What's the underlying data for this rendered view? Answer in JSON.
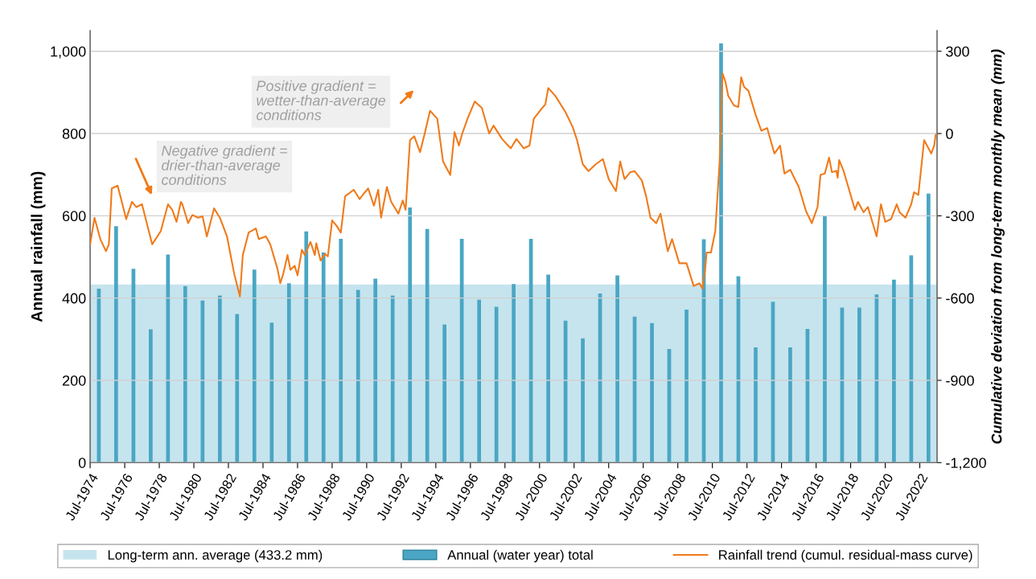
{
  "chart_data": {
    "type": "bar",
    "ylabel": "Annual rainfall (mm)",
    "y2label": "Cumulative deviation from long-term monthly mean (mm)",
    "xlim": [
      "1974-07",
      "2023-07"
    ],
    "xticks": [
      {
        "value": "1974-07",
        "label": "Jul-1974"
      },
      {
        "value": "1976-07",
        "label": "Jul-1976"
      },
      {
        "value": "1978-07",
        "label": "Jul-1978"
      },
      {
        "value": "1980-07",
        "label": "Jul-1980"
      },
      {
        "value": "1982-07",
        "label": "Jul-1982"
      },
      {
        "value": "1984-07",
        "label": "Jul-1984"
      },
      {
        "value": "1986-07",
        "label": "Jul-1986"
      },
      {
        "value": "1988-07",
        "label": "Jul-1988"
      },
      {
        "value": "1990-07",
        "label": "Jul-1990"
      },
      {
        "value": "1992-07",
        "label": "Jul-1992"
      },
      {
        "value": "1994-07",
        "label": "Jul-1994"
      },
      {
        "value": "1996-07",
        "label": "Jul-1996"
      },
      {
        "value": "1998-07",
        "label": "Jul-1998"
      },
      {
        "value": "2000-07",
        "label": "Jul-2000"
      },
      {
        "value": "2002-07",
        "label": "Jul-2002"
      },
      {
        "value": "2004-07",
        "label": "Jul-2004"
      },
      {
        "value": "2006-07",
        "label": "Jul-2006"
      },
      {
        "value": "2008-07",
        "label": "Jul-2008"
      },
      {
        "value": "2010-07",
        "label": "Jul-2010"
      },
      {
        "value": "2012-07",
        "label": "Jul-2012"
      },
      {
        "value": "2014-07",
        "label": "Jul-2014"
      },
      {
        "value": "2016-07",
        "label": "Jul-2016"
      },
      {
        "value": "2018-07",
        "label": "Jul-2018"
      },
      {
        "value": "2020-07",
        "label": "Jul-2020"
      },
      {
        "value": "2022-07",
        "label": "Jul-2022"
      }
    ],
    "ylim": [
      0,
      1050
    ],
    "yticks": [
      0,
      200,
      400,
      600,
      800,
      {
        "value": 1000,
        "label": "1,000"
      }
    ],
    "y2lim": [
      -1200,
      375
    ],
    "y2ticks": [
      {
        "value": -1200,
        "label": "-1,200"
      },
      -900,
      -600,
      -300,
      0,
      300
    ],
    "grid": "y",
    "legend": "bottom",
    "bands": [
      {
        "axis": "y",
        "from": 0,
        "to": 433.2,
        "label": "Long-term ann. average (433.2 mm)",
        "color": "#c6e4ee"
      }
    ],
    "series": [
      {
        "name": "Annual (water year) total",
        "color": "#4aa6c4",
        "x": [
          "1975-01",
          "1976-01",
          "1977-01",
          "1978-01",
          "1979-01",
          "1980-01",
          "1981-01",
          "1982-01",
          "1983-01",
          "1984-01",
          "1985-01",
          "1986-01",
          "1987-01",
          "1988-01",
          "1989-01",
          "1990-01",
          "1991-01",
          "1992-01",
          "1993-01",
          "1994-01",
          "1995-01",
          "1996-01",
          "1997-01",
          "1998-01",
          "1999-01",
          "2000-01",
          "2001-01",
          "2002-01",
          "2003-01",
          "2004-01",
          "2005-01",
          "2006-01",
          "2007-01",
          "2008-01",
          "2009-01",
          "2010-01",
          "2011-01",
          "2012-01",
          "2013-01",
          "2014-01",
          "2015-01",
          "2016-01",
          "2017-01",
          "2018-01",
          "2019-01",
          "2020-01",
          "2021-01",
          "2022-01",
          "2023-01"
        ],
        "values": [
          423,
          575,
          471,
          324,
          506,
          429,
          394,
          406,
          361,
          469,
          340,
          436,
          562,
          511,
          544,
          420,
          447,
          406,
          620,
          568,
          336,
          544,
          396,
          379,
          434,
          544,
          457,
          345,
          302,
          411,
          455,
          355,
          339,
          276,
          372,
          543,
          1019,
          453,
          280,
          391,
          280,
          325,
          599,
          377,
          377,
          409,
          445,
          504,
          654
        ]
      },
      {
        "name": "Rainfall trend (cumul. residual-mass curve)",
        "type": "line",
        "axis": "y2",
        "color": "#f07a1a",
        "x": [
          "1974-07",
          "1974-10",
          "1975-02",
          "1975-06",
          "1975-08",
          "1975-10",
          "1976-02",
          "1976-04",
          "1976-08",
          "1976-12",
          "1977-03",
          "1977-07",
          "1978-02",
          "1978-08",
          "1979-01",
          "1979-04",
          "1979-07",
          "1979-10",
          "1979-11",
          "1980-03",
          "1980-06",
          "1980-10",
          "1981-01",
          "1981-04",
          "1981-09",
          "1982-01",
          "1982-06",
          "1982-11",
          "1983-03",
          "1983-05",
          "1983-09",
          "1984-02",
          "1984-04",
          "1984-09",
          "1984-12",
          "1985-05",
          "1985-07",
          "1985-09",
          "1985-12",
          "1986-02",
          "1986-05",
          "1986-07",
          "1986-10",
          "1986-12",
          "1987-04",
          "1987-07",
          "1987-08",
          "1987-11",
          "1988-02",
          "1988-04",
          "1988-07",
          "1988-10",
          "1989-01",
          "1989-04",
          "1989-10",
          "1990-02",
          "1990-05",
          "1990-08",
          "1990-12",
          "1991-03",
          "1991-05",
          "1991-09",
          "1991-12",
          "1992-05",
          "1992-08",
          "1992-10",
          "1993-01",
          "1993-04",
          "1993-08",
          "1993-11",
          "1994-03",
          "1994-08",
          "1994-12",
          "1995-05",
          "1995-08",
          "1995-11",
          "1996-01",
          "1996-05",
          "1996-10",
          "1997-03",
          "1997-08",
          "1997-11",
          "1998-05",
          "1998-11",
          "1999-03",
          "1999-08",
          "1999-12",
          "2000-03",
          "2000-08",
          "2000-11",
          "2001-01",
          "2001-06",
          "2002-01",
          "2002-06",
          "2002-09",
          "2003-01",
          "2003-05",
          "2003-10",
          "2004-03",
          "2004-07",
          "2004-12",
          "2005-03",
          "2005-06",
          "2005-10",
          "2006-01",
          "2006-06",
          "2006-09",
          "2006-12",
          "2007-04",
          "2007-07",
          "2007-12",
          "2008-03",
          "2008-08",
          "2009-01",
          "2009-06",
          "2009-10",
          "2009-12",
          "2010-02",
          "2010-03",
          "2010-06",
          "2010-09",
          "2010-12",
          "2011-02",
          "2011-04",
          "2011-06",
          "2011-10",
          "2012-01",
          "2012-03",
          "2012-05",
          "2012-08",
          "2013-01",
          "2013-05",
          "2013-09",
          "2014-02",
          "2014-06",
          "2014-09",
          "2015-01",
          "2015-07",
          "2015-12",
          "2016-04",
          "2016-08",
          "2016-10",
          "2017-01",
          "2017-04",
          "2017-06",
          "2017-09",
          "2017-10",
          "2017-11",
          "2018-02",
          "2018-10",
          "2018-12",
          "2019-04",
          "2019-07",
          "2020-01",
          "2020-04",
          "2020-07",
          "2020-11",
          "2021-03",
          "2021-05",
          "2021-09",
          "2022-01",
          "2022-03",
          "2022-06",
          "2022-10",
          "2023-03",
          "2023-05",
          "2023-06"
        ],
        "values": [
          -404,
          -307,
          -385,
          -429,
          -404,
          -200,
          -190,
          -229,
          -312,
          -249,
          -268,
          -258,
          -404,
          -356,
          -258,
          -278,
          -322,
          -249,
          -258,
          -327,
          -297,
          -307,
          -302,
          -375,
          -273,
          -307,
          -375,
          -512,
          -594,
          -443,
          -361,
          -346,
          -385,
          -375,
          -404,
          -492,
          -546,
          -512,
          -443,
          -497,
          -482,
          -517,
          -424,
          -443,
          -395,
          -443,
          -400,
          -463,
          -439,
          -448,
          -317,
          -336,
          -361,
          -229,
          -205,
          -239,
          -219,
          -200,
          -263,
          -205,
          -307,
          -195,
          -249,
          -292,
          -244,
          -278,
          -24,
          -10,
          -68,
          -5,
          83,
          54,
          -102,
          -151,
          5,
          -44,
          -5,
          54,
          117,
          93,
          0,
          29,
          -20,
          -54,
          -20,
          -54,
          -44,
          54,
          88,
          107,
          166,
          137,
          78,
          24,
          -24,
          -112,
          -137,
          -112,
          -93,
          -166,
          -210,
          -102,
          -166,
          -141,
          -137,
          -171,
          -229,
          -307,
          -327,
          -292,
          -429,
          -385,
          -473,
          -473,
          -556,
          -546,
          -565,
          -492,
          -434,
          -434,
          -356,
          -102,
          219,
          190,
          137,
          102,
          97,
          205,
          170,
          156,
          68,
          10,
          20,
          -73,
          -44,
          -146,
          -132,
          -195,
          -283,
          -327,
          -268,
          -151,
          -146,
          -88,
          -141,
          -136,
          -161,
          -97,
          -136,
          -278,
          -249,
          -287,
          -268,
          -375,
          -258,
          -322,
          -312,
          -258,
          -287,
          -307,
          -258,
          -214,
          -224,
          -24,
          -73,
          -44,
          -5
        ]
      }
    ],
    "annotations": [
      "Negative gradient =\ndrier-than-average\nconditions",
      "Positive gradient =\nwetter-than-average\nconditions"
    ]
  }
}
